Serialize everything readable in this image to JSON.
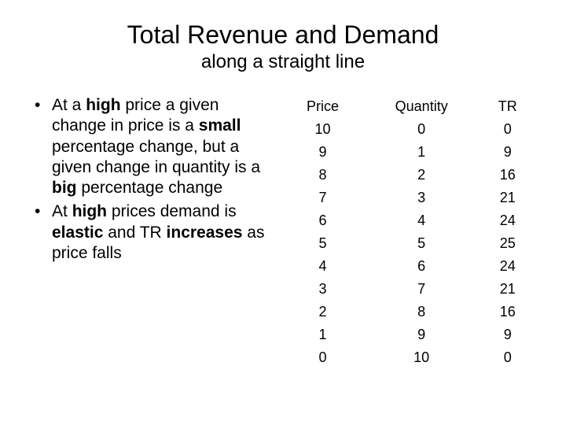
{
  "title": "Total Revenue and Demand",
  "subtitle": "along a straight line",
  "bullets": [
    {
      "segments": [
        {
          "t": "At a ",
          "b": false
        },
        {
          "t": "high",
          "b": true
        },
        {
          "t": " price a given change in price is a ",
          "b": false
        },
        {
          "t": "small",
          "b": true
        },
        {
          "t": " percentage change, but a given change in quantity is a ",
          "b": false
        },
        {
          "t": "big",
          "b": true
        },
        {
          "t": " percentage change",
          "b": false
        }
      ]
    },
    {
      "segments": [
        {
          "t": "At ",
          "b": false
        },
        {
          "t": "high",
          "b": true
        },
        {
          "t": " prices demand is ",
          "b": false
        },
        {
          "t": "elastic",
          "b": true
        },
        {
          "t": " and TR ",
          "b": false
        },
        {
          "t": "increases",
          "b": true
        },
        {
          "t": " as price falls",
          "b": false
        }
      ]
    }
  ],
  "table": {
    "columns": [
      "Price",
      "Quantity",
      "TR"
    ],
    "rows": [
      [
        "10",
        "0",
        "0"
      ],
      [
        "9",
        "1",
        "9"
      ],
      [
        "8",
        "2",
        "16"
      ],
      [
        "7",
        "3",
        "21"
      ],
      [
        "6",
        "4",
        "24"
      ],
      [
        "5",
        "5",
        "25"
      ],
      [
        "4",
        "6",
        "24"
      ],
      [
        "3",
        "7",
        "21"
      ],
      [
        "2",
        "8",
        "16"
      ],
      [
        "1",
        "9",
        "9"
      ],
      [
        "0",
        "10",
        "0"
      ]
    ],
    "header_fontsize": 18,
    "cell_fontsize": 18,
    "text_color": "#000000",
    "background_color": "#ffffff"
  },
  "colors": {
    "background": "#ffffff",
    "text": "#000000"
  }
}
